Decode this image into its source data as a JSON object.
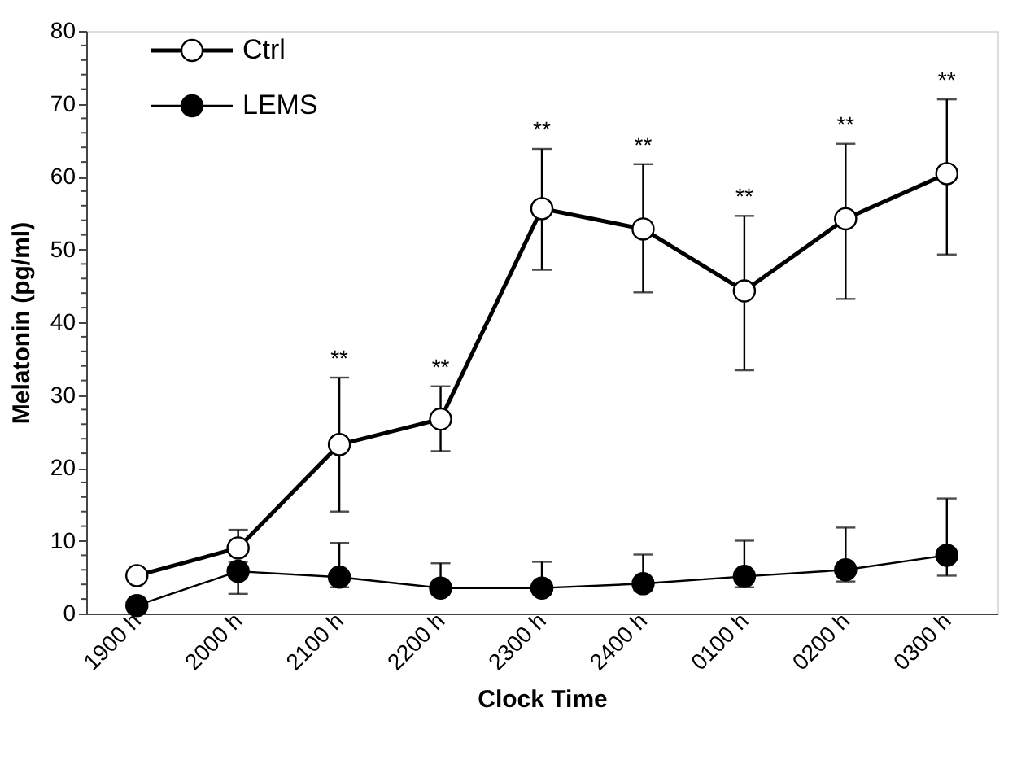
{
  "chart_data": {
    "type": "line",
    "xlabel": "Clock Time",
    "ylabel": "Melatonin (pg/ml)",
    "categories": [
      "1900 h",
      "2000 h",
      "2100 h",
      "2200 h",
      "2300 h",
      "2400 h",
      "0100 h",
      "0200 h",
      "0300 h"
    ],
    "series": [
      {
        "name": "Ctrl",
        "color": "#000000",
        "values": [
          5.2,
          9,
          23.2,
          26.7,
          55.6,
          52.8,
          44.3,
          54.2,
          60.4
        ],
        "errors": [
          null,
          [
            9,
            11.5
          ],
          [
            14,
            32.4
          ],
          [
            22.3,
            31.2
          ],
          [
            47.2,
            63.8
          ],
          [
            44.1,
            61.7
          ],
          [
            33.4,
            54.6
          ],
          [
            43.2,
            64.5
          ],
          [
            49.3,
            70.6
          ]
        ]
      },
      {
        "name": "LEMS",
        "color": "#000000",
        "values": [
          1.1,
          5.8,
          5,
          3.5,
          3.5,
          4.1,
          5.1,
          6,
          8
        ],
        "errors": [
          null,
          [
            2.7,
            7.1
          ],
          [
            3.6,
            9.7
          ],
          [
            3.5,
            6.9
          ],
          [
            3.5,
            7.1
          ],
          [
            3.2,
            8.1
          ],
          [
            3.6,
            10
          ],
          [
            4.4,
            11.8
          ],
          [
            5.2,
            15.8
          ]
        ]
      }
    ],
    "ylim": [
      0,
      80
    ],
    "yticks": [
      0,
      {
        "value": 2,
        "label": null
      },
      {
        "value": 4,
        "label": null
      },
      {
        "value": 6,
        "label": null
      },
      {
        "value": 8,
        "label": null
      },
      10,
      {
        "value": 12,
        "label": null
      },
      {
        "value": 14,
        "label": null
      },
      {
        "value": 16,
        "label": null
      },
      {
        "value": 18,
        "label": null
      },
      20,
      {
        "value": 22,
        "label": null
      },
      {
        "value": 24,
        "label": null
      },
      {
        "value": 26,
        "label": null
      },
      {
        "value": 28,
        "label": null
      },
      30,
      {
        "value": 32,
        "label": null
      },
      {
        "value": 34,
        "label": null
      },
      {
        "value": 36,
        "label": null
      },
      {
        "value": 38,
        "label": null
      },
      40,
      {
        "value": 42,
        "label": null
      },
      {
        "value": 44,
        "label": null
      },
      {
        "value": 46,
        "label": null
      },
      {
        "value": 48,
        "label": null
      },
      50,
      {
        "value": 52,
        "label": null
      },
      {
        "value": 54,
        "label": null
      },
      {
        "value": 56,
        "label": null
      },
      {
        "value": 58,
        "label": null
      },
      60,
      {
        "value": 62,
        "label": null
      },
      {
        "value": 64,
        "label": null
      },
      {
        "value": 66,
        "label": null
      },
      {
        "value": 68,
        "label": null
      },
      70,
      {
        "value": 72,
        "label": null
      },
      {
        "value": 74,
        "label": null
      },
      {
        "value": 76,
        "label": null
      },
      {
        "value": 78,
        "label": null
      },
      80
    ],
    "annotations": [
      "**",
      "**",
      "**",
      "**",
      "**",
      "**",
      "**"
    ],
    "grid": false,
    "legend": "top left",
    "marker": "circle",
    "line_style": "solid"
  }
}
